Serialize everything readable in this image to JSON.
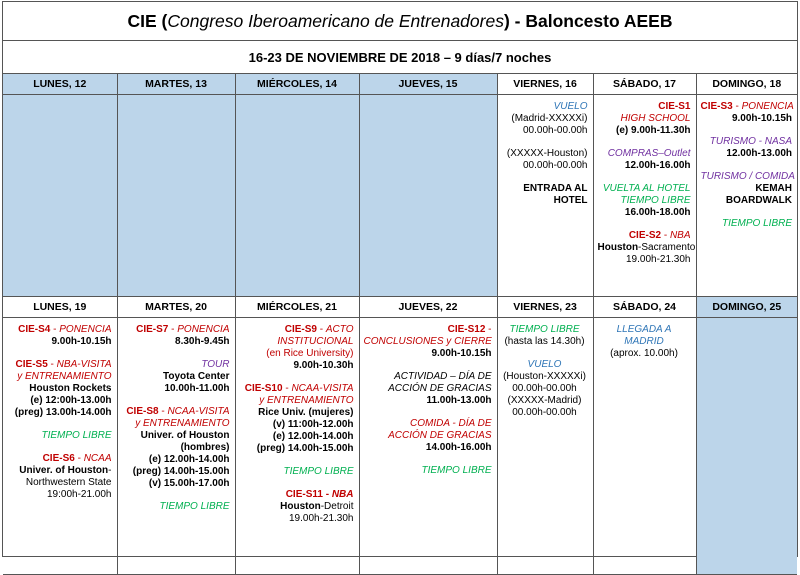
{
  "title": {
    "prefix": "CIE (",
    "italic": "Congreso Iberoamericano de Entrenadores",
    "suffix": ") - Baloncesto AEEB"
  },
  "subtitle": "16-23 DE NOVIEMBRE DE 2018 – 9 días/7 noches",
  "week1": {
    "days": [
      "LUNES, 12",
      "MARTES, 13",
      "MIÉRCOLES, 14",
      "JUEVES, 15",
      "VIERNES, 16",
      "SÁBADO, 17",
      "DOMINGO, 18"
    ],
    "viernes": {
      "vuelo": "VUELO",
      "vuelo_route1": "(Madrid-XXXXXi)",
      "vuelo_time1": "00.00h-00.00h",
      "vuelo_route2": "(XXXXX-Houston)",
      "vuelo_time2": "00.00h-00.00h",
      "entrada1": "ENTRADA AL",
      "entrada2": "HOTEL"
    },
    "sabado": {
      "s1_code": "CIE-S1",
      "s1_name": "HIGH SCHOOL",
      "s1_time": "(e) 9.00h-11.30h",
      "compras": "COMPRAS–Outlet",
      "compras_time": "12.00h-16.00h",
      "vuelta1": "VUELTA AL HOTEL",
      "vuelta2": "TIEMPO LIBRE",
      "vuelta_time": "16.00h-18.00h",
      "s2_code": "CIE-S2",
      "s2_name": "NBA",
      "s2_place1": "Houston",
      "s2_place2": "-Sacramento",
      "s2_time": "19.00h-21.30h"
    },
    "domingo": {
      "s3_code": "CIE-S3",
      "s3_name": "PONENCIA",
      "s3_time": "9.00h-10.15h",
      "turismo": "TURISMO - NASA",
      "turismo_time": "12.00h-13.00h",
      "comida": "TURISMO / COMIDA",
      "kemah1": "KEMAH",
      "kemah2": "BOARDWALK",
      "libre": "TIEMPO LIBRE"
    }
  },
  "week2": {
    "days": [
      "LUNES, 19",
      "MARTES, 20",
      "MIÉRCOLES, 21",
      "JUEVES, 22",
      "VIERNES, 23",
      "SÁBADO, 24",
      "DOMINGO, 25"
    ],
    "lunes": {
      "s4_code": "CIE-S4",
      "s4_name": "PONENCIA",
      "s4_time": "9.00h-10.15h",
      "s5_code": "CIE-S5",
      "s5_name1": "NBA-VISITA",
      "s5_name2": "y ENTRENAMIENTO",
      "s5_place": "Houston Rockets",
      "s5_time1": "(e) 12:00h-13.00h",
      "s5_time2": "(preg) 13.00h-14.00h",
      "libre": "TIEMPO LIBRE",
      "s6_code": "CIE-S6",
      "s6_name": "NCAA",
      "s6_place1": "Univer. of Houston",
      "s6_place2": "-",
      "s6_place3": "Northwestern State",
      "s6_time": "19:00h-21.00h"
    },
    "martes": {
      "s7_code": "CIE-S7",
      "s7_name": "PONENCIA",
      "s7_time": "8.30h-9.45h",
      "tour": "TOUR",
      "tour_place": "Toyota Center",
      "tour_time": "10.00h-11.00h",
      "s8_code": "CIE-S8",
      "s8_name1": "NCAA-VISITA",
      "s8_name2": "y ENTRENAMIENTO",
      "s8_place1": "Univer. of Houston",
      "s8_place2": "(hombres)",
      "s8_time1": "(e) 12.00h-14.00h",
      "s8_time2": "(preg) 14.00h-15.00h",
      "s8_time3": "(v) 15.00h-17.00h",
      "libre": "TIEMPO LIBRE"
    },
    "miercoles": {
      "s9_code": "CIE-S9",
      "s9_name1": "ACTO",
      "s9_name2": "INSTITUCIONAL",
      "s9_name3": "(en Rice University)",
      "s9_time": "9.00h-10.30h",
      "s10_code": "CIE-S10",
      "s10_name1": "NCAA-VISITA",
      "s10_name2": "y ENTRENAMIENTO",
      "s10_place": "Rice Univ. (mujeres)",
      "s10_time1": "(v) 11:00h-12.00h",
      "s10_time2": "(e) 12.00h-14.00h",
      "s10_time3": "(preg) 14.00h-15.00h",
      "libre": "TIEMPO LIBRE",
      "s11_code": "CIE-S11",
      "s11_name": "NBA",
      "s11_place1": "Houston",
      "s11_place2": "-Detroit",
      "s11_time": "19.00h-21.30h"
    },
    "jueves": {
      "s12_code": "CIE-S12",
      "s12_name1": "",
      "s12_name2": "CONCLUSIONES y CIERRE",
      "s12_time": "9.00h-10.15h",
      "act1": "ACTIVIDAD – DÍA DE",
      "act2": "ACCIÓN DE GRACIAS",
      "act_time": "11.00h-13.00h",
      "comida1": "COMIDA - DÍA DE",
      "comida2": "ACCIÓN DE GRACIAS",
      "comida_time": "14.00h-16.00h",
      "libre": "TIEMPO LIBRE"
    },
    "viernes": {
      "libre": "TIEMPO LIBRE",
      "libre_time": "(hasta las 14.30h)",
      "vuelo": "VUELO",
      "vuelo_route1": "(Houston-XXXXXi)",
      "vuelo_time1": "00.00h-00.00h",
      "vuelo_route2": "(XXXXX-Madrid)",
      "vuelo_time2": "00.00h-00.00h"
    },
    "sabado": {
      "llegada1": "LLEGADA A",
      "llegada2": "MADRID",
      "llegada_time": "(aprox. 10.00h)"
    }
  },
  "colors": {
    "empty_cell": "#bcd5ea",
    "session": "#c00000",
    "flight": "#2e75b6",
    "tour": "#7030a0",
    "free_time": "#00b050"
  }
}
